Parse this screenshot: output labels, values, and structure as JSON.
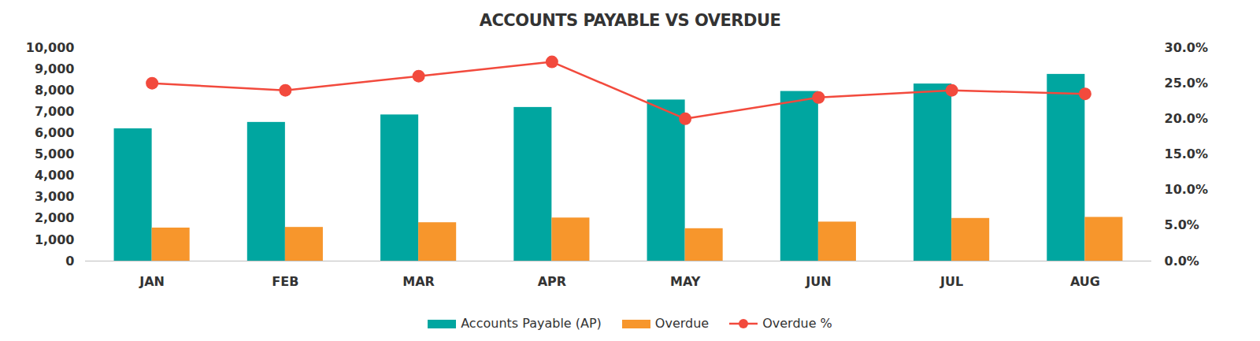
{
  "chart_data": {
    "type": "bar",
    "title": "ACCOUNTS PAYABLE VS OVERDUE",
    "categories": [
      "JAN",
      "FEB",
      "MAR",
      "APR",
      "MAY",
      "JUN",
      "JUL",
      "AUG"
    ],
    "series": [
      {
        "name": "Accounts Payable (AP)",
        "type": "bar",
        "color": "#00a6a0",
        "values": [
          6200,
          6500,
          6850,
          7200,
          7550,
          7950,
          8300,
          8750
        ]
      },
      {
        "name": "Overdue",
        "type": "bar",
        "color": "#f7962c",
        "values": [
          1550,
          1580,
          1800,
          2020,
          1520,
          1830,
          2000,
          2050
        ]
      },
      {
        "name": "Overdue %",
        "type": "line",
        "axis": "y2",
        "color": "#f24a3d",
        "marker": "circle",
        "values": [
          25,
          24,
          26,
          28,
          20,
          23,
          24,
          23.5
        ]
      }
    ],
    "ylim": [
      0,
      10000
    ],
    "yticks": [
      0,
      {
        "value": 1000,
        "label": "1,000"
      },
      {
        "value": 2000,
        "label": "2,000"
      },
      {
        "value": 3000,
        "label": "3,000"
      },
      {
        "value": 4000,
        "label": "4,000"
      },
      {
        "value": 5000,
        "label": "5,000"
      },
      {
        "value": 6000,
        "label": "6,000"
      },
      {
        "value": 7000,
        "label": "7,000"
      },
      {
        "value": 8000,
        "label": "8,000"
      },
      {
        "value": 9000,
        "label": "9,000"
      },
      {
        "value": 10000,
        "label": "10,000"
      }
    ],
    "y2lim": [
      0,
      30
    ],
    "y2ticks": [
      {
        "value": 0,
        "label": "0.0%"
      },
      {
        "value": 5,
        "label": "5.0%"
      },
      {
        "value": 10,
        "label": "10.0%"
      },
      {
        "value": 15,
        "label": "15.0%"
      },
      {
        "value": 20,
        "label": "20.0%"
      },
      {
        "value": 25,
        "label": "25.0%"
      },
      {
        "value": 30,
        "label": "30.0%"
      }
    ],
    "grid": false,
    "legend": "bottom"
  }
}
